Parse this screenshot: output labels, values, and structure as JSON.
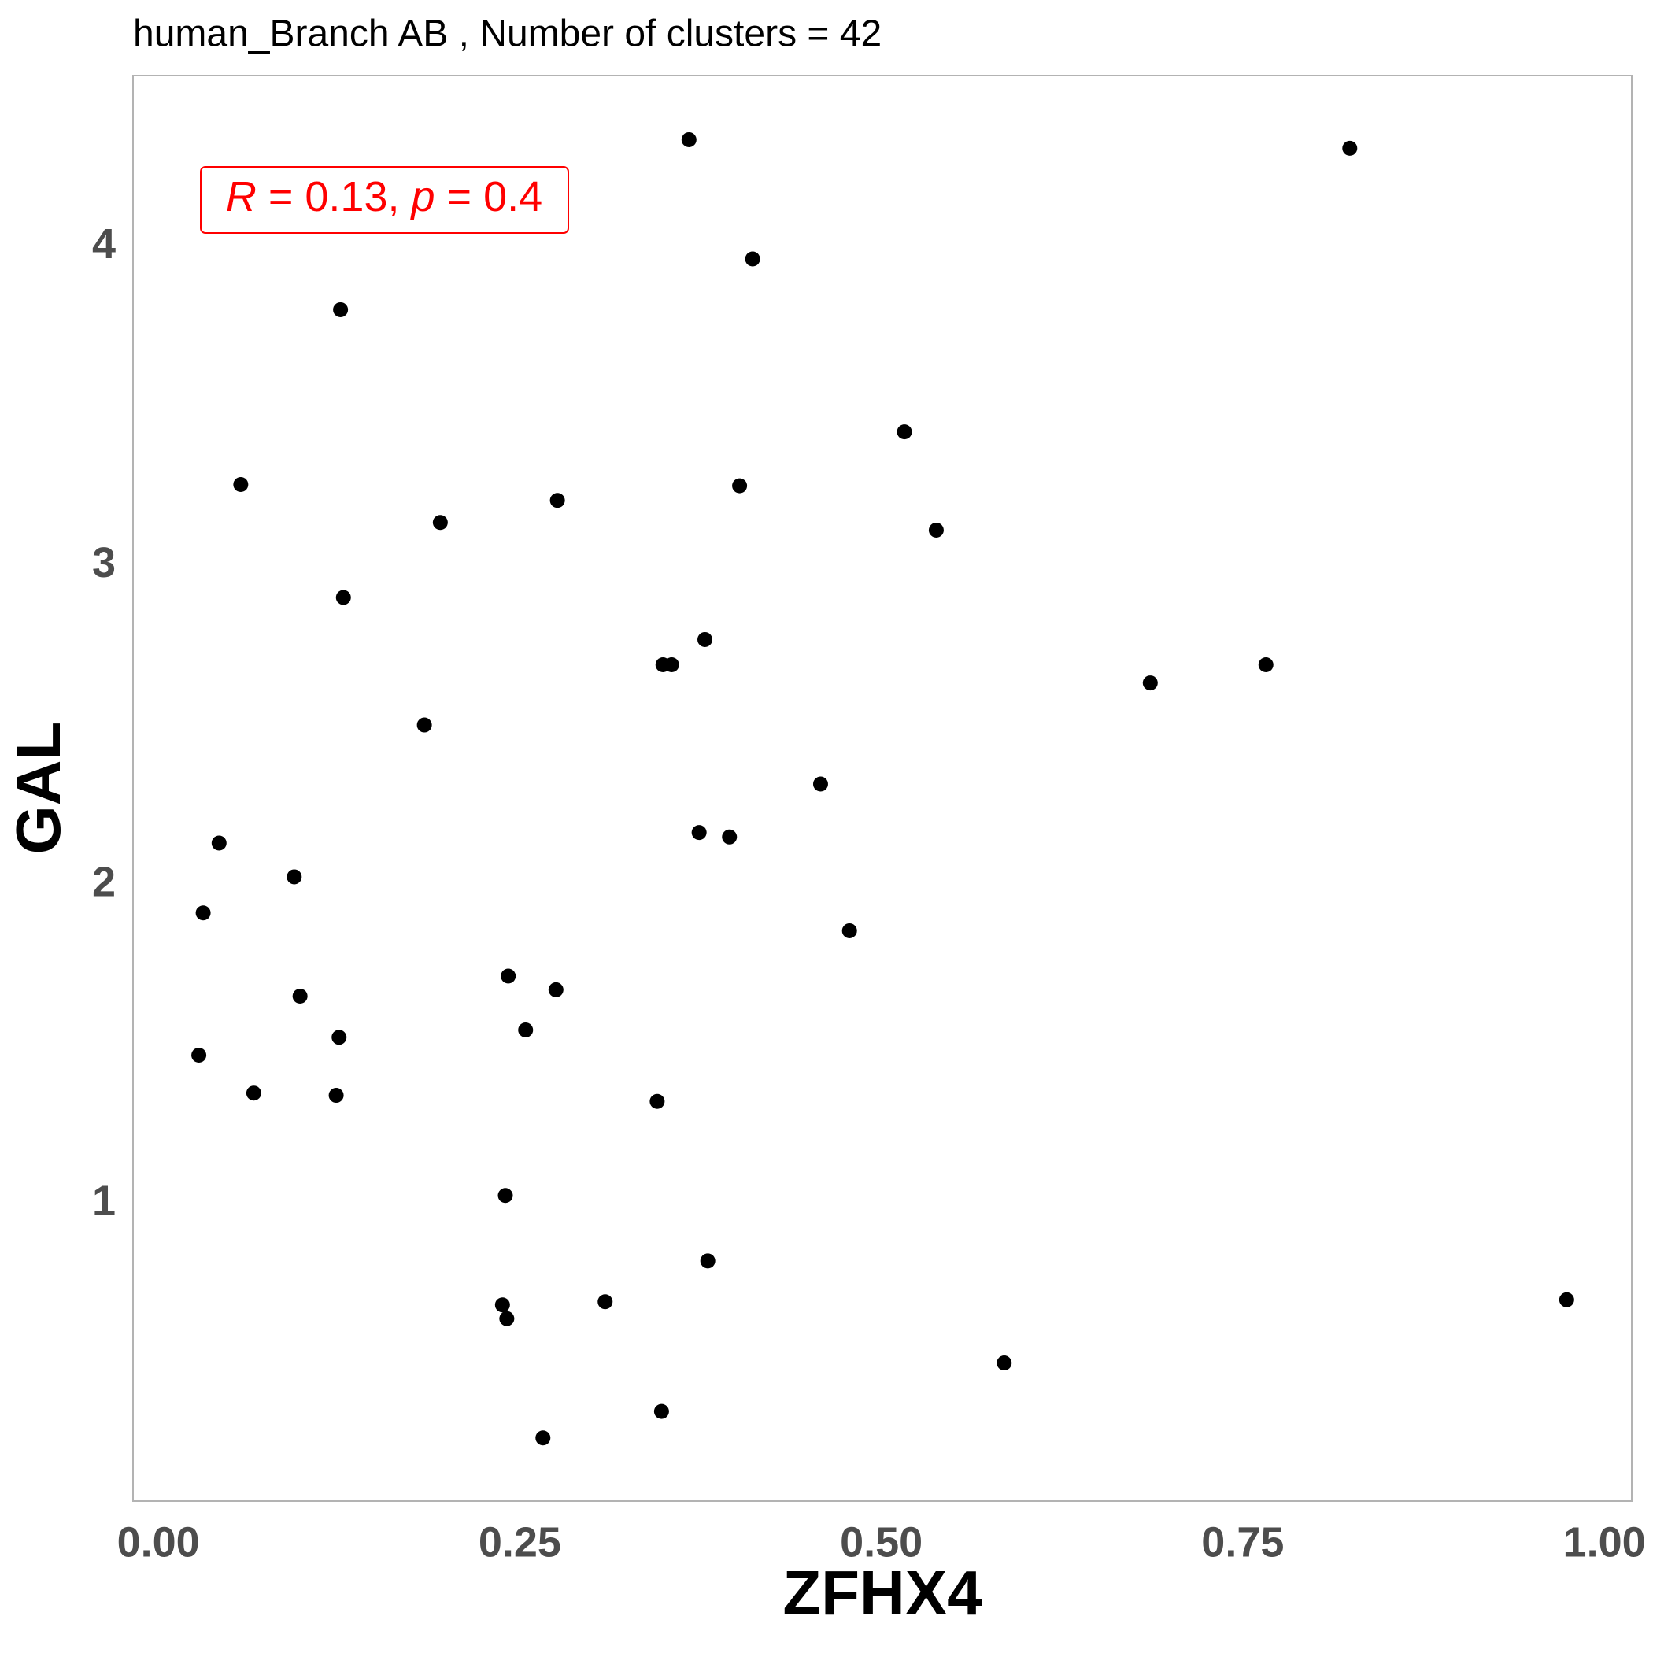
{
  "chart_data": {
    "type": "scatter",
    "title": "human_Branch AB , Number of clusters =  42",
    "x_label": "ZFHX4",
    "y_label": "GAL",
    "annotation": {
      "parts": [
        "R",
        " = 0.13, ",
        "p",
        " = 0.4"
      ],
      "color": "#ff0000"
    },
    "color": "#000000",
    "xlim": [
      -0.0175,
      1.019
    ],
    "ylim": [
      0.068,
      4.537
    ],
    "xticks": [
      {
        "value": 0,
        "label": "0.00"
      },
      {
        "value": 0.25,
        "label": "0.25"
      },
      {
        "value": 0.5,
        "label": "0.50"
      },
      {
        "value": 0.75,
        "label": "0.75"
      },
      {
        "value": 1,
        "label": "1.00"
      }
    ],
    "yticks": [
      1,
      2,
      3,
      4
    ],
    "grid": false,
    "x": [
      0.367,
      0.824,
      0.411,
      0.126,
      0.516,
      0.057,
      0.402,
      0.276,
      0.195,
      0.538,
      0.128,
      0.378,
      0.349,
      0.355,
      0.766,
      0.686,
      0.184,
      0.458,
      0.374,
      0.395,
      0.042,
      0.094,
      0.031,
      0.478,
      0.242,
      0.275,
      0.098,
      0.254,
      0.125,
      0.028,
      0.066,
      0.123,
      0.345,
      0.24,
      0.38,
      0.974,
      0.309,
      0.238,
      0.241,
      0.585,
      0.348,
      0.266
    ],
    "values": [
      4.336,
      4.309,
      3.962,
      3.803,
      3.42,
      3.255,
      3.251,
      3.205,
      3.136,
      3.112,
      2.901,
      2.769,
      2.69,
      2.69,
      2.69,
      2.633,
      2.501,
      2.316,
      2.164,
      2.15,
      2.131,
      2.025,
      1.912,
      1.856,
      1.714,
      1.671,
      1.651,
      1.545,
      1.522,
      1.466,
      1.347,
      1.34,
      1.321,
      1.026,
      0.821,
      0.699,
      0.693,
      0.683,
      0.64,
      0.501,
      0.349,
      0.266
    ]
  }
}
